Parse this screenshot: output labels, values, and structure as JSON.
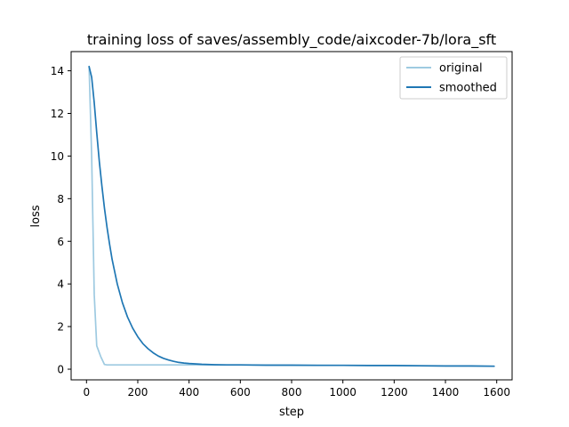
{
  "chart_data": {
    "type": "line",
    "title": "training loss of saves/assembly_code/aixcoder-7b/lora_sft",
    "xlabel": "step",
    "ylabel": "loss",
    "xlim": [
      -60,
      1660
    ],
    "ylim": [
      -0.5,
      14.9
    ],
    "x_ticks": [
      "0",
      "200",
      "400",
      "600",
      "800",
      "1000",
      "1200",
      "1400",
      "1600"
    ],
    "y_ticks": [
      "0",
      "2",
      "4",
      "6",
      "8",
      "10",
      "12",
      "14"
    ],
    "legend_position": "top-right",
    "grid": false,
    "series": [
      {
        "name": "original",
        "color": "#9ecae1",
        "x": [
          10,
          20,
          30,
          40,
          55,
          70,
          80,
          100,
          150,
          200,
          300,
          400,
          600,
          800,
          1000,
          1200,
          1400,
          1590
        ],
        "y": [
          14.2,
          10.0,
          3.5,
          1.1,
          0.6,
          0.22,
          0.2,
          0.2,
          0.2,
          0.2,
          0.2,
          0.2,
          0.2,
          0.19,
          0.18,
          0.17,
          0.15,
          0.14
        ]
      },
      {
        "name": "smoothed",
        "color": "#1f77b4",
        "x": [
          10,
          20,
          30,
          40,
          50,
          60,
          70,
          80,
          90,
          100,
          120,
          140,
          160,
          180,
          200,
          220,
          240,
          260,
          280,
          300,
          320,
          340,
          360,
          380,
          400,
          450,
          500,
          550,
          600,
          700,
          800,
          900,
          1000,
          1100,
          1200,
          1300,
          1400,
          1500,
          1590
        ],
        "y": [
          14.2,
          13.7,
          12.5,
          11.1,
          9.75,
          8.6,
          7.55,
          6.65,
          5.85,
          5.15,
          4.0,
          3.12,
          2.45,
          1.93,
          1.52,
          1.2,
          0.96,
          0.77,
          0.62,
          0.51,
          0.43,
          0.37,
          0.32,
          0.29,
          0.27,
          0.23,
          0.21,
          0.2,
          0.2,
          0.19,
          0.19,
          0.18,
          0.18,
          0.17,
          0.17,
          0.16,
          0.15,
          0.15,
          0.14
        ]
      }
    ]
  }
}
